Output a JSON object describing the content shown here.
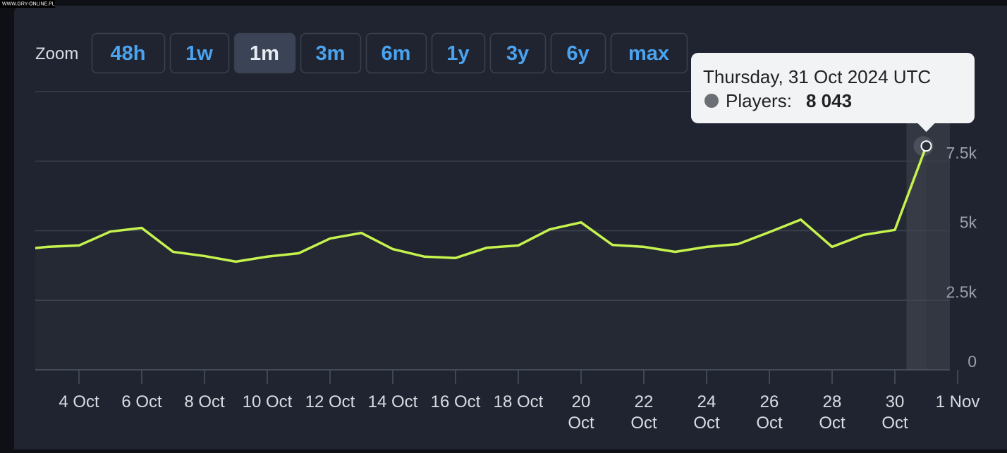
{
  "watermark": "WWW.GRY-ONLINE.PL",
  "zoom": {
    "label": "Zoom",
    "options": [
      "48h",
      "1w",
      "1m",
      "3m",
      "6m",
      "1y",
      "3y",
      "6y",
      "max"
    ],
    "active": "1m"
  },
  "chart_data": {
    "type": "line",
    "x": [
      "2024-10-03",
      "2024-10-04",
      "2024-10-05",
      "2024-10-06",
      "2024-10-07",
      "2024-10-08",
      "2024-10-09",
      "2024-10-10",
      "2024-10-11",
      "2024-10-12",
      "2024-10-13",
      "2024-10-14",
      "2024-10-15",
      "2024-10-16",
      "2024-10-17",
      "2024-10-18",
      "2024-10-19",
      "2024-10-20",
      "2024-10-21",
      "2024-10-22",
      "2024-10-23",
      "2024-10-24",
      "2024-10-25",
      "2024-10-26",
      "2024-10-27",
      "2024-10-28",
      "2024-10-29",
      "2024-10-30",
      "2024-10-31"
    ],
    "values": [
      4420,
      4470,
      4970,
      5100,
      4240,
      4090,
      3890,
      4070,
      4190,
      4720,
      4920,
      4340,
      4070,
      4020,
      4390,
      4470,
      5050,
      5300,
      4490,
      4420,
      4240,
      4420,
      4520,
      4950,
      5400,
      4420,
      4850,
      5030,
      8043
    ],
    "value_labels": [
      null,
      null,
      null,
      null,
      null,
      null,
      null,
      null,
      null,
      null,
      null,
      null,
      null,
      null,
      null,
      null,
      null,
      null,
      null,
      null,
      null,
      null,
      null,
      null,
      null,
      null,
      null,
      null,
      "8 043"
    ],
    "color": "#c6f24e",
    "ylim": [
      0,
      10000
    ],
    "yticks": [
      0,
      {
        "value": 2500,
        "label": "2.5k"
      },
      {
        "value": 5000,
        "label": "5k"
      },
      {
        "value": 7500,
        "label": "7.5k"
      }
    ],
    "xticks": [
      {
        "value": "2024-10-04",
        "label": "4 Oct"
      },
      {
        "value": "2024-10-06",
        "label": "6 Oct"
      },
      {
        "value": "2024-10-08",
        "label": "8 Oct"
      },
      {
        "value": "2024-10-10",
        "label": "10 Oct"
      },
      {
        "value": "2024-10-12",
        "label": "12 Oct"
      },
      {
        "value": "2024-10-14",
        "label": "14 Oct"
      },
      {
        "value": "2024-10-16",
        "label": "16 Oct"
      },
      {
        "value": "2024-10-18",
        "label": "18 Oct"
      },
      {
        "value": "2024-10-20",
        "label": "20 Oct"
      },
      {
        "value": "2024-10-22",
        "label": "22 Oct"
      },
      {
        "value": "2024-10-24",
        "label": "24 Oct"
      },
      {
        "value": "2024-10-26",
        "label": "26 Oct"
      },
      {
        "value": "2024-10-28",
        "label": "28 Oct"
      },
      {
        "value": "2024-10-30",
        "label": "30 Oct"
      },
      {
        "value": "2024-11-01",
        "label": "1 Nov"
      }
    ],
    "grid": true,
    "tooltip": {
      "index": 28,
      "title": "Thursday, 31 Oct 2024 UTC",
      "label": "Players:"
    }
  }
}
